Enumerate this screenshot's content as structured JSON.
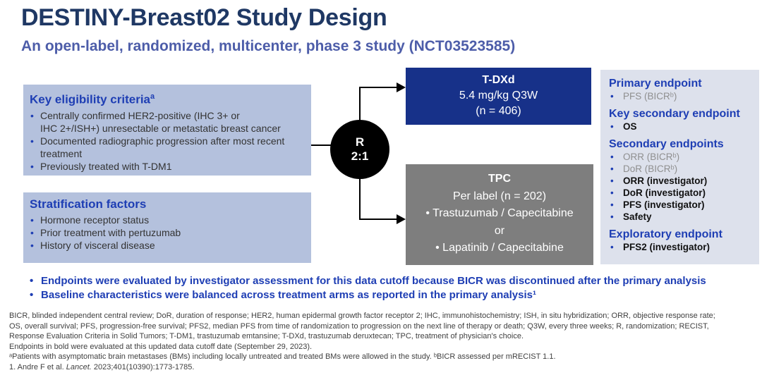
{
  "slide": {
    "title": "DESTINY-Breast02 Study Design",
    "subtitle": "An open-label, randomized, multicenter, phase 3 study (NCT03523585)"
  },
  "colors": {
    "title_navy": "#1f3864",
    "subtitle_blue": "#4d5da9",
    "header_blue": "#1e3eb4",
    "left_box_bg": "#b4c1dd",
    "panel_bg": "#dde1ec",
    "tdxd_navy": "#173189",
    "tpc_gray": "#7e7e7e",
    "muted_gray": "#8f8f8f"
  },
  "eligibility": {
    "header": "Key eligibility criteria",
    "header_sup": "a",
    "items": [
      "Centrally confirmed HER2-positive (IHC 3+ or\nIHC 2+/ISH+) unresectable or metastatic breast cancer",
      "Documented radiographic progression after most recent\ntreatment",
      "Previously treated with T-DM1"
    ]
  },
  "stratification": {
    "header": "Stratification factors",
    "items": [
      "Hormone receptor status",
      "Prior treatment with pertuzumab",
      "History of visceral disease"
    ]
  },
  "randomization": {
    "label": "R",
    "ratio": "2:1"
  },
  "arms": {
    "tdxd": {
      "name": "T-DXd",
      "dose": "5.4 mg/kg Q3W",
      "n": "(n = 406)"
    },
    "tpc": {
      "name": "TPC",
      "per_label": "Per label (n = 202)",
      "option1": "• Trastuzumab / Capecitabine",
      "or_text": "or",
      "option2": "• Lapatinib / Capecitabine"
    }
  },
  "endpoints": {
    "primary": {
      "header": "Primary endpoint",
      "item1": "PFS (BICRᵇ)"
    },
    "key_secondary": {
      "header": "Key secondary endpoint",
      "item1": "OS"
    },
    "secondary": {
      "header": "Secondary endpoints",
      "item1": "ORR (BICRᵇ)",
      "item2": "DoR (BICRᵇ)",
      "item3": "ORR (investigator)",
      "item4": "DoR (investigator)",
      "item5": "PFS (investigator)",
      "item6": "Safety"
    },
    "exploratory": {
      "header": "Exploratory endpoint",
      "item1": "PFS2 (investigator)"
    }
  },
  "takeaways": {
    "bullet1": "Endpoints were evaluated by investigator assessment for this data cutoff because BICR was discontinued after the primary analysis",
    "bullet2": "Baseline characteristics were balanced across treatment arms as reported in the primary analysis¹"
  },
  "footnotes": {
    "abbreviations": "BICR, blinded independent central review; DoR, duration of response; HER2, human epidermal growth factor receptor 2; IHC, immunohistochemistry; ISH, in situ hybridization; ORR, objective response rate;\nOS, overall survival; PFS, progression-free survival; PFS2, median PFS from time of randomization to progression on the next line of therapy or death; Q3W, every three weeks; R, randomization; RECIST,\nResponse Evaluation Criteria in Solid Tumors; T-DM1, trastuzumab emtansine; T-DXd, trastuzumab deruxtecan; TPC, treatment of physician's choice.",
    "bold_note": "Endpoints in bold were evaluated at this updated data cutoff date (September 29, 2023).",
    "superscript_note": "ᵃPatients with asymptomatic brain metastases (BMs) including locally untreated and treated BMs were allowed in the study. ᵇBICR assessed per mRECIST 1.1.",
    "reference": {
      "prefix": "1. Andre F et al. ",
      "journal": "Lancet.",
      "suffix": " 2023;401(10390):1773-1785."
    }
  }
}
